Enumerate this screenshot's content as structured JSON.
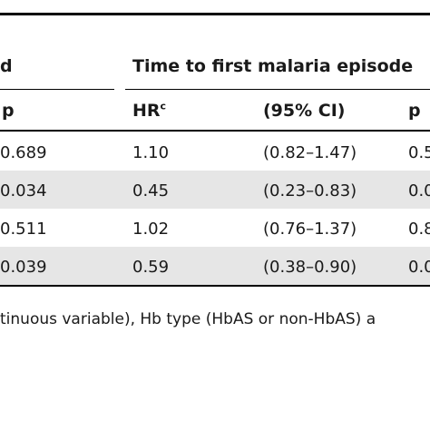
{
  "header": {
    "left_group_fragment": "d",
    "group_title": "Time to first malaria episode"
  },
  "columns": {
    "p_left": "p",
    "hr": "HR",
    "hr_sup": "c",
    "ci": "(95% CI)",
    "p_right": "p"
  },
  "rows": [
    {
      "p_left": "0.689",
      "hr": "1.10",
      "ci": "(0.82–1.47)",
      "p_right": "0.5",
      "shaded": false
    },
    {
      "p_left": "0.034",
      "hr": "0.45",
      "ci": "(0.23–0.83)",
      "p_right": "0.0",
      "shaded": true
    },
    {
      "p_left": "0.511",
      "hr": "1.02",
      "ci": "(0.76–1.37)",
      "p_right": "0.8",
      "shaded": false
    },
    {
      "p_left": "0.039",
      "hr": "0.59",
      "ci": "(0.38–0.90)",
      "p_right": "0.0",
      "shaded": true
    }
  ],
  "footnote": "tinuous variable), Hb type (HbAS or non-HbAS) a"
}
